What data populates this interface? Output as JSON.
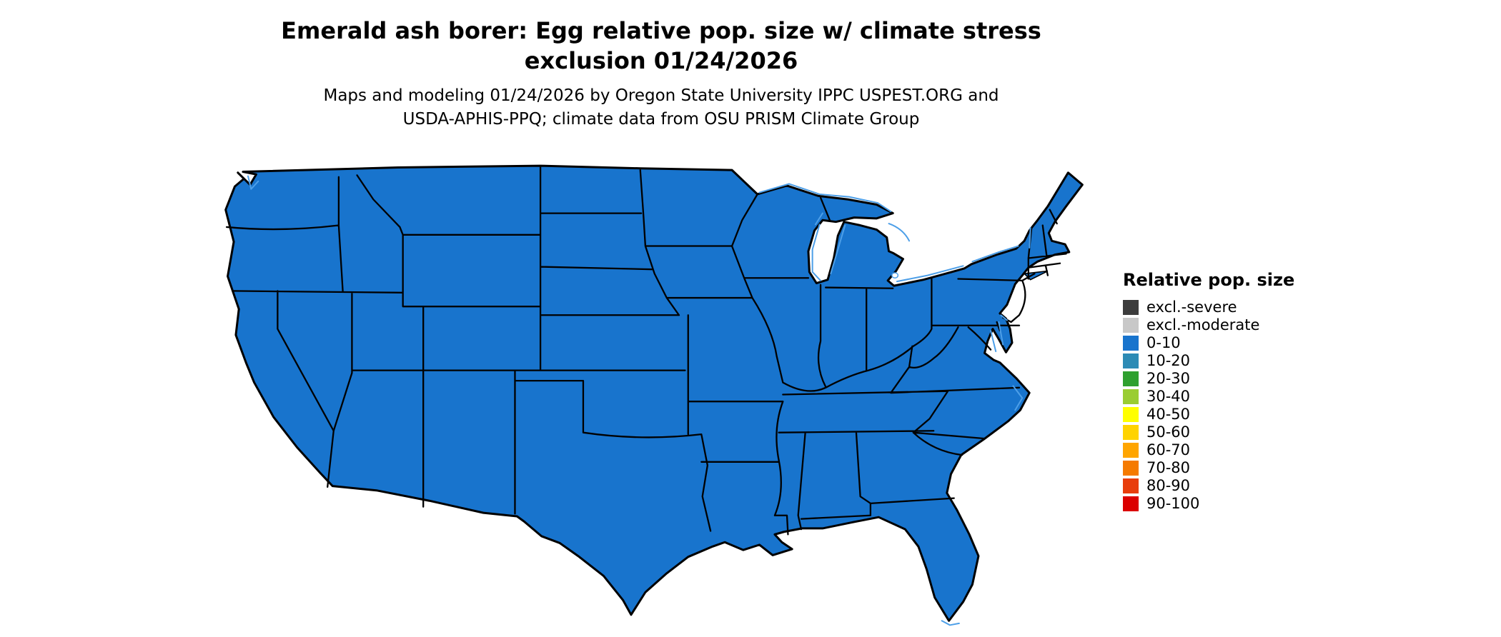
{
  "title": {
    "line1": "Emerald ash borer: Egg relative pop. size w/ climate stress",
    "line2": "exclusion 01/24/2026"
  },
  "subtitle": {
    "line1": "Maps and modeling 01/24/2026 by Oregon State University IPPC USPEST.ORG and",
    "line2": "USDA-APHIS-PPQ; climate data from OSU PRISM Climate Group"
  },
  "map": {
    "region": "Continental United States",
    "fill_color": "#1874CD",
    "border_color": "#000000",
    "water_color": "#4D9FE8"
  },
  "legend": {
    "title": "Relative pop. size",
    "entries": [
      {
        "label": "excl.-severe",
        "color": "#3C3C3C"
      },
      {
        "label": "excl.-moderate",
        "color": "#C8C8C8"
      },
      {
        "label": "0-10",
        "color": "#1874CD"
      },
      {
        "label": "10-20",
        "color": "#2D8BB5"
      },
      {
        "label": "20-30",
        "color": "#2FA02F"
      },
      {
        "label": "30-40",
        "color": "#9ACD32"
      },
      {
        "label": "40-50",
        "color": "#FFFF00"
      },
      {
        "label": "50-60",
        "color": "#FFD300"
      },
      {
        "label": "60-70",
        "color": "#FFA500"
      },
      {
        "label": "70-80",
        "color": "#F57A00"
      },
      {
        "label": "80-90",
        "color": "#E83D0C"
      },
      {
        "label": "90-100",
        "color": "#DB0000"
      }
    ]
  }
}
